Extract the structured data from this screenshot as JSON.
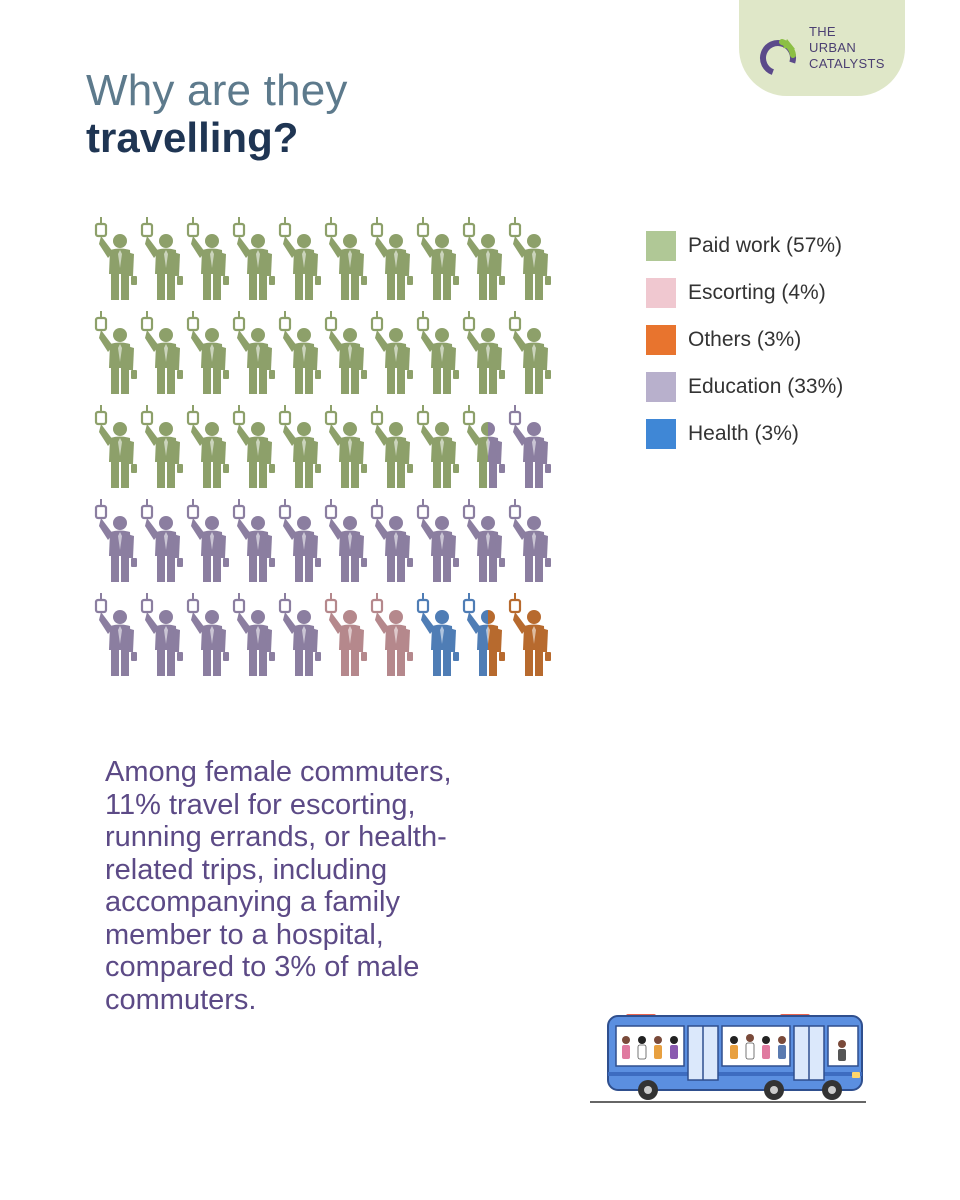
{
  "brand": {
    "lines": [
      "THE",
      "URBAN",
      "CATALYSTS"
    ],
    "colors": {
      "tab": "#dfe7c8",
      "ring": "#5b4a8a",
      "arrow": "#8cbf45",
      "text": "#4b3f72"
    },
    "icon": "circular-arrow-logo-icon"
  },
  "title": {
    "line1": "Why are they",
    "line2": "travelling?"
  },
  "chart_data": {
    "type": "pictogram",
    "unit_icon": "commuter-holding-strap-icon",
    "grid": {
      "rows": 5,
      "cols": 10
    },
    "categories": [
      {
        "label": "Paid work (57%)",
        "value": 57,
        "color": "#8da06a",
        "legend_color": "#b0c896"
      },
      {
        "label": "Escorting  (4%)",
        "value": 4,
        "color": "#b5888c",
        "legend_color": "#f0c8d0"
      },
      {
        "label": "Others (3%)",
        "value": 3,
        "color": "#b76a2e",
        "legend_color": "#e8742e"
      },
      {
        "label": "Education (33%)",
        "value": 33,
        "color": "#8b7ea0",
        "legend_color": "#b8b0cc"
      },
      {
        "label": "Health (3%)",
        "value": 3,
        "color": "#4f7db5",
        "legend_color": "#3f87d6"
      }
    ],
    "icon_sequence": [
      [
        "work"
      ],
      [
        "work"
      ],
      [
        "work"
      ],
      [
        "work"
      ],
      [
        "work"
      ],
      [
        "work"
      ],
      [
        "work"
      ],
      [
        "work"
      ],
      [
        "work"
      ],
      [
        "work"
      ],
      [
        "work"
      ],
      [
        "work"
      ],
      [
        "work"
      ],
      [
        "work"
      ],
      [
        "work"
      ],
      [
        "work"
      ],
      [
        "work"
      ],
      [
        "work"
      ],
      [
        "work"
      ],
      [
        "work"
      ],
      [
        "work"
      ],
      [
        "work"
      ],
      [
        "work"
      ],
      [
        "work"
      ],
      [
        "work"
      ],
      [
        "work"
      ],
      [
        "work"
      ],
      [
        "work"
      ],
      [
        "work",
        "edu"
      ],
      [
        "edu"
      ],
      [
        "edu"
      ],
      [
        "edu"
      ],
      [
        "edu"
      ],
      [
        "edu"
      ],
      [
        "edu"
      ],
      [
        "edu"
      ],
      [
        "edu"
      ],
      [
        "edu"
      ],
      [
        "edu"
      ],
      [
        "edu"
      ],
      [
        "edu"
      ],
      [
        "edu"
      ],
      [
        "edu"
      ],
      [
        "edu"
      ],
      [
        "edu"
      ],
      [
        "esc"
      ],
      [
        "esc"
      ],
      [
        "health"
      ],
      [
        "health",
        "others"
      ],
      [
        "others"
      ]
    ],
    "legend_placement": "right"
  },
  "note": "Among female commuters, 11% travel for escorting, running errands, or health-related trips, including accompanying a family member to a hospital, compared to 3% of male commuters.",
  "illustration": {
    "icon": "city-bus-illustration-icon",
    "body_color": "#5b8fe0"
  }
}
